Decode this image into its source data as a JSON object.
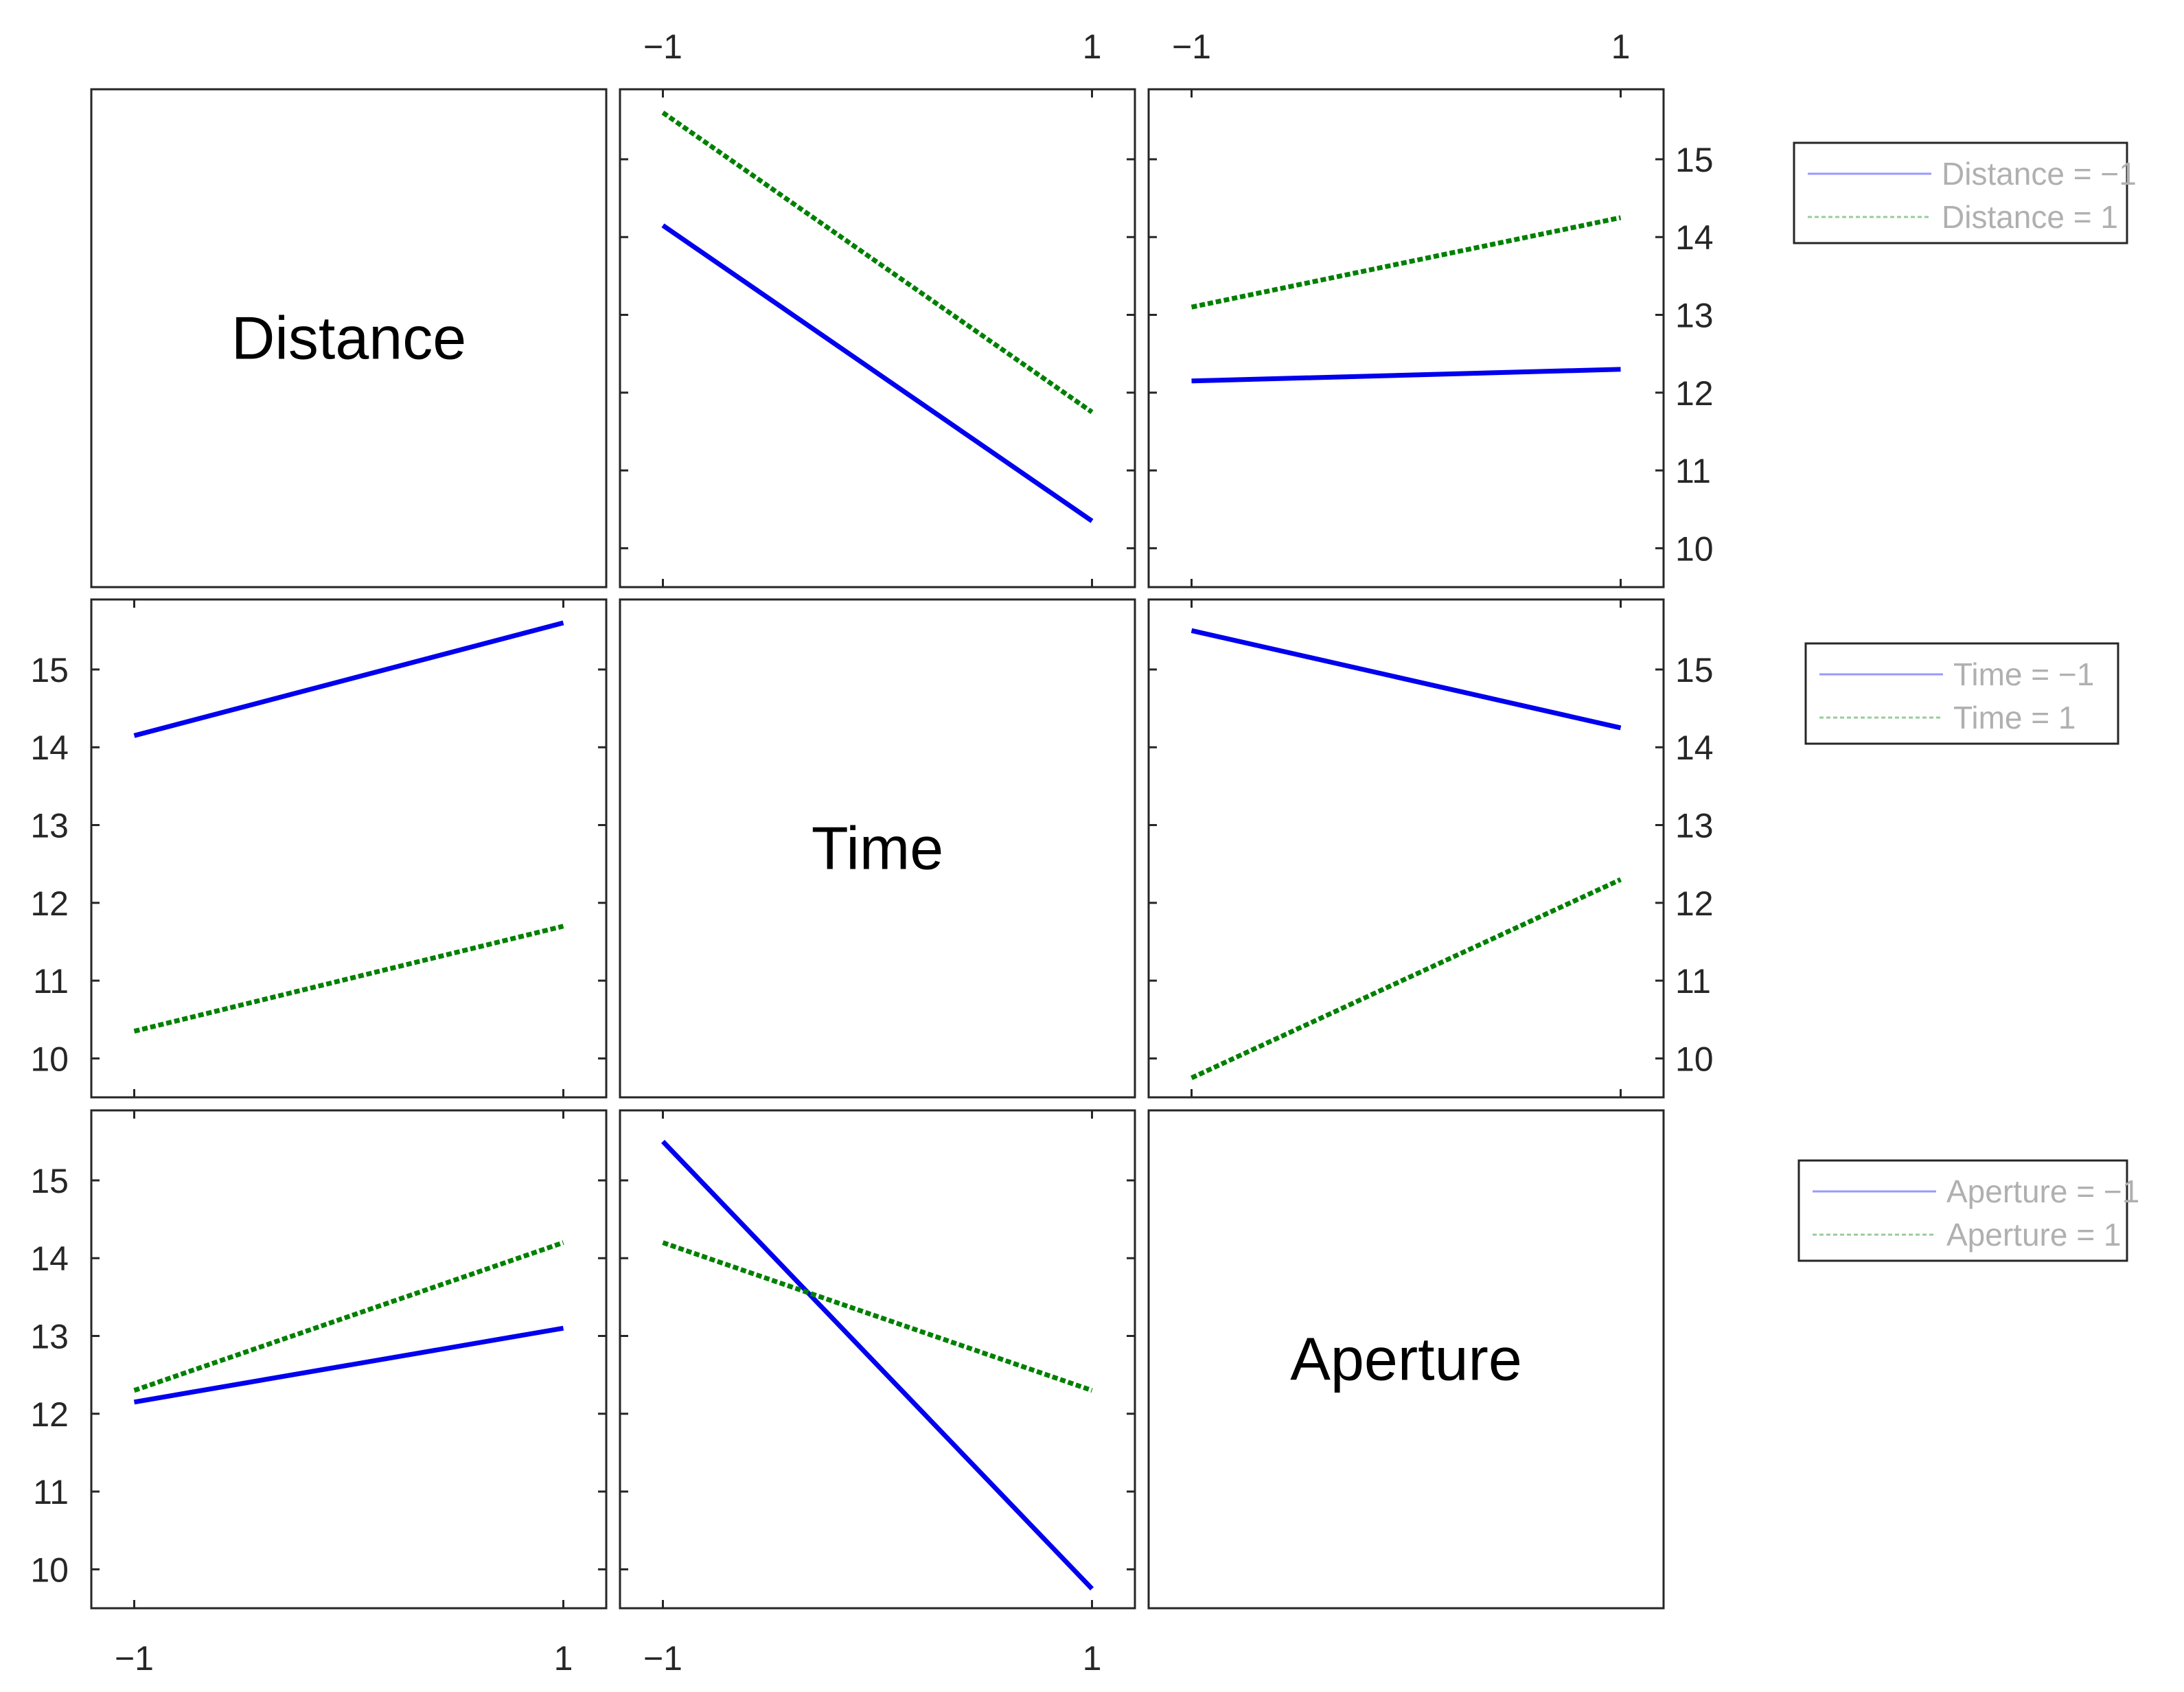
{
  "chart_data": {
    "type": "line",
    "title": "",
    "factors": [
      "Distance",
      "Time",
      "Aperture"
    ],
    "x_ticks": [
      {
        "value": -1,
        "label": "−1"
      },
      {
        "value": 1,
        "label": "1"
      }
    ],
    "y_ticks": [
      {
        "value": 10,
        "label": "10"
      },
      {
        "value": 11,
        "label": "11"
      },
      {
        "value": 12,
        "label": "12"
      },
      {
        "value": 13,
        "label": "13"
      },
      {
        "value": 14,
        "label": "14"
      },
      {
        "value": 15,
        "label": "15"
      }
    ],
    "xlim": [
      -1.2,
      1.2
    ],
    "ylim": [
      9.5,
      15.9
    ],
    "grid": false,
    "colors": {
      "level_minus": "#0000ee",
      "level_plus": "#008000"
    },
    "panels": [
      {
        "row": 0,
        "col": 1,
        "series": [
          {
            "level": -1,
            "x": [
              -1,
              1
            ],
            "y": [
              14.15,
              10.35
            ]
          },
          {
            "level": 1,
            "x": [
              -1,
              1
            ],
            "y": [
              15.6,
              11.75
            ]
          }
        ]
      },
      {
        "row": 0,
        "col": 2,
        "series": [
          {
            "level": -1,
            "x": [
              -1,
              1
            ],
            "y": [
              12.15,
              12.3
            ]
          },
          {
            "level": 1,
            "x": [
              -1,
              1
            ],
            "y": [
              13.1,
              14.25
            ]
          }
        ]
      },
      {
        "row": 1,
        "col": 0,
        "series": [
          {
            "level": -1,
            "x": [
              -1,
              1
            ],
            "y": [
              14.15,
              15.6
            ]
          },
          {
            "level": 1,
            "x": [
              -1,
              1
            ],
            "y": [
              10.35,
              11.7
            ]
          }
        ]
      },
      {
        "row": 1,
        "col": 2,
        "series": [
          {
            "level": -1,
            "x": [
              -1,
              1
            ],
            "y": [
              15.5,
              14.25
            ]
          },
          {
            "level": 1,
            "x": [
              -1,
              1
            ],
            "y": [
              9.75,
              12.3
            ]
          }
        ]
      },
      {
        "row": 2,
        "col": 0,
        "series": [
          {
            "level": -1,
            "x": [
              -1,
              1
            ],
            "y": [
              12.15,
              13.1
            ]
          },
          {
            "level": 1,
            "x": [
              -1,
              1
            ],
            "y": [
              12.3,
              14.2
            ]
          }
        ]
      },
      {
        "row": 2,
        "col": 1,
        "series": [
          {
            "level": -1,
            "x": [
              -1,
              1
            ],
            "y": [
              15.5,
              9.75
            ]
          },
          {
            "level": 1,
            "x": [
              -1,
              1
            ],
            "y": [
              14.2,
              12.3
            ]
          }
        ]
      }
    ],
    "legends": [
      {
        "row": 0,
        "entries": [
          "Distance = −1",
          "Distance = 1"
        ]
      },
      {
        "row": 1,
        "entries": [
          "Time = −1",
          "Time = 1"
        ]
      },
      {
        "row": 2,
        "entries": [
          "Aperture = −1",
          "Aperture = 1"
        ]
      }
    ]
  }
}
